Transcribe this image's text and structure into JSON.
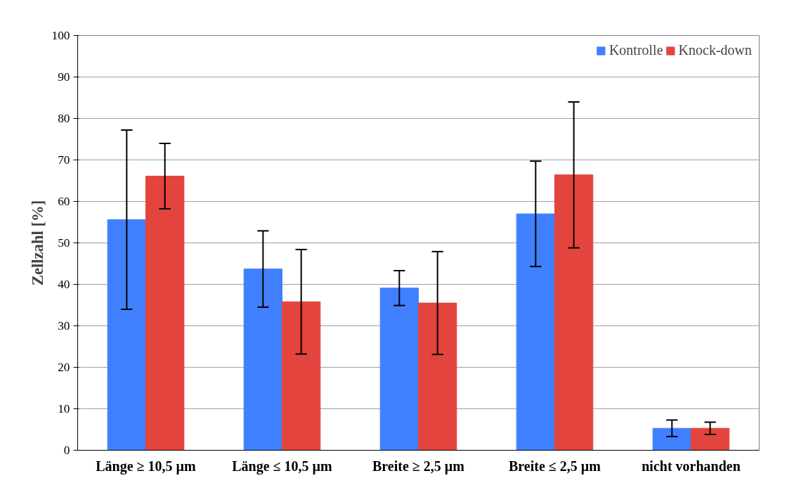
{
  "chart_data": {
    "type": "bar",
    "ylabel": "Zellzahl [%]",
    "categories": [
      "Länge ≥ 10,5 µm",
      "Länge ≤ 10,5 µm",
      "Breite ≥ 2,5 µm",
      "Breite ≤ 2,5 µm",
      "nicht vorhanden"
    ],
    "series": [
      {
        "name": "Kontrolle",
        "color": "#4080ff",
        "values": [
          55.6,
          43.7,
          39.1,
          57.0,
          5.3
        ],
        "errors": [
          21.6,
          9.2,
          4.2,
          12.7,
          2.0
        ]
      },
      {
        "name": "Knock-down",
        "color": "#e3443d",
        "values": [
          66.1,
          35.8,
          35.5,
          66.4,
          5.3
        ],
        "errors": [
          7.9,
          12.6,
          12.4,
          17.6,
          1.5
        ]
      }
    ],
    "ylim": [
      0,
      100
    ],
    "yticks": [
      0,
      10,
      20,
      30,
      40,
      50,
      60,
      70,
      80,
      90,
      100
    ],
    "grid": "y",
    "legend": "top right"
  }
}
